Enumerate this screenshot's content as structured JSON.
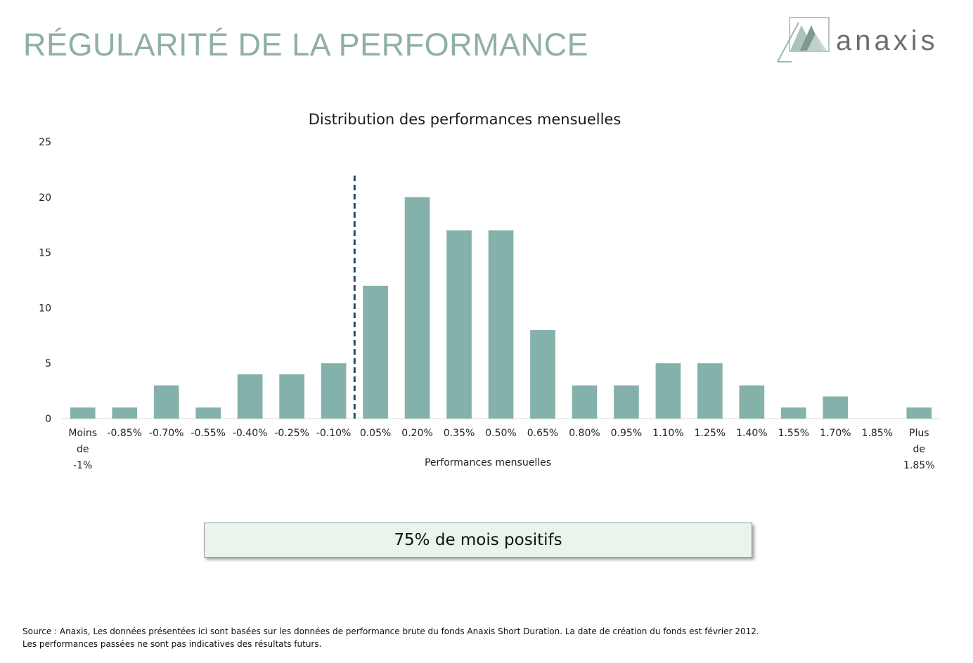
{
  "header": {
    "title": "RÉGULARITÉ DE LA PERFORMANCE",
    "logo_text": "anaxis",
    "title_color": "#8fb0a3"
  },
  "chart_data": {
    "type": "bar",
    "title": "Distribution des performances mensuelles",
    "xlabel": "Performances mensuelles",
    "ylabel": "",
    "ylim": [
      0,
      25
    ],
    "yticks": [
      0,
      5,
      10,
      15,
      20,
      25
    ],
    "grid": false,
    "bar_color": "#84b2ab",
    "categories": [
      [
        "Moins",
        "de",
        "-1%"
      ],
      [
        "-0.85%"
      ],
      [
        "-0.70%"
      ],
      [
        "-0.55%"
      ],
      [
        "-0.40%"
      ],
      [
        "-0.25%"
      ],
      [
        "-0.10%"
      ],
      [
        "0.05%"
      ],
      [
        "0.20%"
      ],
      [
        "0.35%"
      ],
      [
        "0.50%"
      ],
      [
        "0.65%"
      ],
      [
        "0.80%"
      ],
      [
        "0.95%"
      ],
      [
        "1.10%"
      ],
      [
        "1.25%"
      ],
      [
        "1.40%"
      ],
      [
        "1.55%"
      ],
      [
        "1.70%"
      ],
      [
        "1.85%"
      ],
      [
        "Plus",
        "de",
        "1.85%"
      ]
    ],
    "values": [
      1,
      1,
      3,
      1,
      4,
      4,
      5,
      12,
      20,
      17,
      17,
      8,
      3,
      3,
      5,
      5,
      3,
      1,
      2,
      0,
      1
    ],
    "annotations": {
      "zero_separator": {
        "style": "dashed",
        "color": "#2d4a6b",
        "between_categories": [
          "-0.10%",
          "0.05%"
        ]
      }
    }
  },
  "callout": {
    "text": "75% de mois positifs"
  },
  "footnote": {
    "line1": "Source : Anaxis, Les données présentées ici sont basées sur les données de performance brute du fonds Anaxis Short Duration. La date de création du fonds est février 2012.",
    "line2": "Les performances passées ne sont pas indicatives des résultats futurs."
  }
}
